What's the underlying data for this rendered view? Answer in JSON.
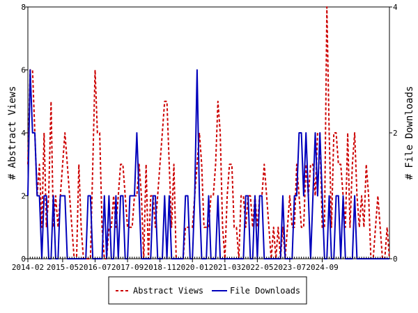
{
  "chart_data": {
    "type": "line",
    "ylabel_left": "# Abstract Views",
    "ylabel_right": "# File Downloads",
    "ylim_left": [
      0,
      8
    ],
    "ylim_right": [
      0,
      4
    ],
    "yticks_left": [
      "0",
      "2",
      "4",
      "6",
      "8"
    ],
    "yticks_right": [
      "0",
      "2",
      "4"
    ],
    "xlim": [
      0,
      156
    ],
    "xticks": [
      {
        "label": "2014-02",
        "x": 0
      },
      {
        "label": "2015-05",
        "x": 15
      },
      {
        "label": "2016-07",
        "x": 29
      },
      {
        "label": "2017-09",
        "x": 43
      },
      {
        "label": "2018-11",
        "x": 57
      },
      {
        "label": "2020-01",
        "x": 71
      },
      {
        "label": "2021-03",
        "x": 85
      },
      {
        "label": "2022-05",
        "x": 99
      },
      {
        "label": "2023-07",
        "x": 113
      },
      {
        "label": "2024-09",
        "x": 127
      }
    ],
    "grid": false,
    "legend_position": "bottom",
    "series": [
      {
        "name": "Abstract Views",
        "axis": "left",
        "color": "#cc0000",
        "style": "dashed",
        "values": [
          3,
          6,
          6,
          4,
          2,
          3,
          1,
          4,
          1,
          2,
          5,
          1,
          2,
          1,
          2,
          3,
          4,
          3,
          2,
          1,
          0,
          0,
          3,
          1,
          0,
          0,
          0,
          0,
          3,
          6,
          4,
          4,
          1,
          0,
          0,
          1,
          1,
          2,
          1,
          2,
          3,
          3,
          2,
          1,
          1,
          1,
          2,
          2,
          3,
          2,
          0,
          3,
          0,
          2,
          2,
          1,
          2,
          3,
          4,
          5,
          5,
          3,
          1,
          3,
          0,
          0,
          0,
          0,
          1,
          1,
          1,
          1,
          2,
          3,
          4,
          3,
          1,
          1,
          1,
          2,
          2,
          3,
          5,
          4,
          1,
          0,
          2,
          3,
          3,
          1,
          1,
          0,
          2,
          2,
          1,
          2,
          2,
          1,
          2,
          1,
          2,
          2,
          3,
          2,
          1,
          0,
          1,
          0,
          1,
          0,
          1,
          0,
          1,
          2,
          1,
          1,
          3,
          2,
          1,
          1,
          3,
          2,
          3,
          3,
          2,
          4,
          4,
          1,
          1,
          8,
          4,
          1,
          4,
          4,
          3,
          3,
          2,
          1,
          4,
          1,
          3,
          4,
          2,
          1,
          2,
          1,
          3,
          2,
          0,
          0,
          1,
          2,
          1,
          0,
          0,
          1,
          0
        ],
        "value_stride_note": ""
      },
      {
        "name": "File Downloads",
        "axis": "right",
        "color": "#0000bb",
        "style": "solid",
        "values": [
          1,
          3,
          2,
          2,
          1,
          1,
          0,
          1,
          1,
          0,
          0,
          1,
          0,
          0,
          1,
          1,
          1,
          0,
          0,
          0,
          0,
          0,
          0,
          0,
          0,
          0,
          1,
          1,
          0,
          0,
          0,
          0,
          0,
          1,
          0,
          1,
          0,
          0,
          1,
          0,
          1,
          1,
          0,
          0,
          1,
          1,
          1,
          2,
          1,
          0,
          0,
          0,
          0,
          0,
          1,
          1,
          0,
          0,
          0,
          1,
          0,
          1,
          0,
          0,
          0,
          0,
          0,
          0,
          1,
          1,
          0,
          0,
          1,
          3,
          1,
          0,
          0,
          0,
          1,
          0,
          0,
          0,
          1,
          0,
          0,
          0,
          0,
          0,
          0,
          0,
          0,
          0,
          0,
          0,
          1,
          1,
          0,
          0,
          1,
          0,
          1,
          1,
          0,
          0,
          0,
          0,
          0,
          0,
          0,
          0,
          1,
          0,
          0,
          0,
          0,
          1,
          1,
          2,
          2,
          1,
          2,
          1,
          0,
          1,
          2,
          1,
          2,
          1,
          0,
          0,
          1,
          0,
          0,
          1,
          1,
          0,
          1,
          0,
          0,
          0,
          0,
          1,
          0,
          0,
          0,
          0,
          0,
          0,
          0,
          0,
          0,
          0,
          0,
          0,
          0,
          0,
          0
        ]
      }
    ]
  }
}
